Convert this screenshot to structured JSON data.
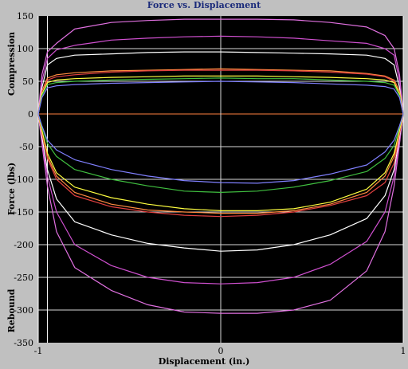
{
  "chart_data": {
    "type": "line",
    "title": "Force vs. Displacement",
    "xlabel": "Displacement (in.)",
    "ylabel": "Force (lbs)",
    "ylabel_top": "Compression",
    "ylabel_bottom": "Rebound",
    "xlim": [
      -1.0,
      1.0
    ],
    "ylim": [
      -350,
      150
    ],
    "x_ticks": [
      -1,
      0,
      1
    ],
    "x_tick_labels": [
      "-1",
      "0",
      "1"
    ],
    "y_ticks": [
      150,
      100,
      50,
      0,
      -50,
      -100,
      -150,
      -200,
      -250,
      -300,
      -350
    ],
    "grid": true,
    "background": "#000000",
    "reference_lines": {
      "x_values": [
        -1.0,
        -0.95,
        1.0
      ],
      "color": "#ffffff"
    },
    "series_x": [
      -1.0,
      -0.98,
      -0.95,
      -0.9,
      -0.8,
      -0.6,
      -0.4,
      -0.2,
      0.0,
      0.2,
      0.4,
      0.6,
      0.8,
      0.9,
      0.95,
      0.98,
      1.0
    ],
    "series": [
      {
        "color": "#e070e0",
        "compression": [
          0,
          60,
          95,
          108,
          130,
          140,
          143,
          145,
          145,
          145,
          144,
          140,
          133,
          120,
          100,
          60,
          0
        ],
        "rebound": [
          0,
          -45,
          -110,
          -180,
          -235,
          -270,
          -292,
          -303,
          -305,
          -305,
          -300,
          -285,
          -240,
          -180,
          -110,
          -45,
          0
        ]
      },
      {
        "color": "#d050d0",
        "compression": [
          0,
          50,
          85,
          98,
          105,
          113,
          116,
          118,
          119,
          118,
          116,
          112,
          108,
          100,
          90,
          50,
          0
        ],
        "rebound": [
          0,
          -40,
          -95,
          -150,
          -200,
          -232,
          -250,
          -258,
          -260,
          -258,
          -250,
          -230,
          -195,
          -150,
          -95,
          -40,
          0
        ]
      },
      {
        "color": "#ffffff",
        "compression": [
          0,
          40,
          75,
          85,
          90,
          92,
          94,
          95,
          95,
          94,
          93,
          92,
          90,
          85,
          75,
          40,
          0
        ],
        "rebound": [
          0,
          -35,
          -85,
          -130,
          -165,
          -185,
          -198,
          -205,
          -210,
          -208,
          -200,
          -185,
          -160,
          -125,
          -85,
          -35,
          0
        ]
      },
      {
        "color": "#ff8c40",
        "compression": [
          0,
          35,
          55,
          60,
          63,
          66,
          67,
          68,
          69,
          68,
          67,
          66,
          62,
          58,
          52,
          35,
          0
        ],
        "rebound": [
          0,
          -30,
          -65,
          -95,
          -120,
          -138,
          -147,
          -150,
          -152,
          -152,
          -148,
          -138,
          -120,
          -95,
          -65,
          -30,
          0
        ]
      },
      {
        "color": "#e04040",
        "compression": [
          0,
          30,
          52,
          57,
          60,
          64,
          66,
          67,
          67,
          67,
          66,
          64,
          61,
          57,
          50,
          30,
          0
        ],
        "rebound": [
          0,
          -30,
          -68,
          -100,
          -125,
          -142,
          -150,
          -155,
          -157,
          -155,
          -150,
          -140,
          -125,
          -105,
          -75,
          -30,
          0
        ]
      },
      {
        "color": "#ffff40",
        "compression": [
          0,
          30,
          48,
          52,
          54,
          56,
          57,
          58,
          58,
          58,
          57,
          56,
          54,
          52,
          48,
          30,
          0
        ],
        "rebound": [
          0,
          -25,
          -60,
          -90,
          -112,
          -128,
          -138,
          -145,
          -148,
          -148,
          -145,
          -135,
          -115,
          -90,
          -60,
          -25,
          0
        ]
      },
      {
        "color": "#40c040",
        "compression": [
          0,
          28,
          45,
          48,
          50,
          52,
          53,
          54,
          55,
          54,
          54,
          52,
          50,
          48,
          44,
          28,
          0
        ],
        "rebound": [
          0,
          -20,
          -45,
          -65,
          -85,
          -100,
          -110,
          -118,
          -120,
          -118,
          -112,
          -102,
          -88,
          -68,
          -48,
          -20,
          0
        ]
      },
      {
        "color": "#8080ff",
        "compression": [
          0,
          25,
          40,
          43,
          45,
          47,
          48,
          49,
          50,
          49,
          48,
          46,
          44,
          42,
          38,
          25,
          0
        ],
        "rebound": [
          0,
          -18,
          -40,
          -55,
          -70,
          -85,
          -95,
          -102,
          -105,
          -106,
          -102,
          -92,
          -78,
          -58,
          -40,
          -18,
          0
        ]
      }
    ]
  }
}
